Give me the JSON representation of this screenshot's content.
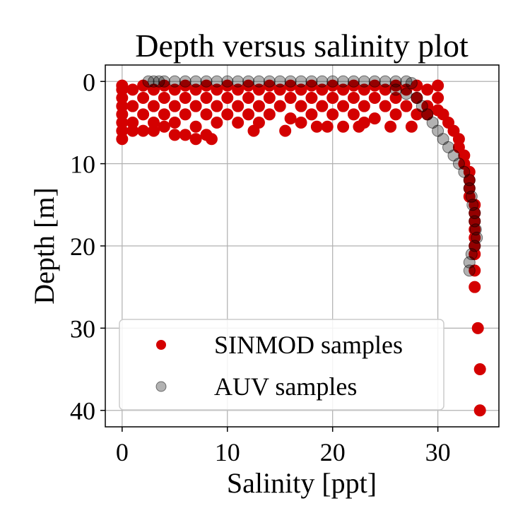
{
  "chart_data": {
    "type": "scatter",
    "title": "Depth versus salinity plot",
    "xlabel": "Salinity [ppt]",
    "ylabel": "Depth [m]",
    "xlim": [
      -1.6,
      35.8
    ],
    "ylim": [
      42,
      -2
    ],
    "y_inverted": true,
    "grid": true,
    "legend_position": "lower-left",
    "x_ticks": [
      0,
      10,
      20,
      30
    ],
    "y_ticks": [
      0,
      10,
      20,
      30,
      40
    ],
    "x_tick_labels": [
      "0",
      "10",
      "20",
      "30"
    ],
    "y_tick_labels": [
      "0",
      "10",
      "20",
      "30",
      "40"
    ],
    "series": [
      {
        "name": "SINMOD samples",
        "color": "#d40000",
        "alpha": 1.0,
        "points": [
          [
            0,
            0.5
          ],
          [
            0,
            1
          ],
          [
            0,
            2
          ],
          [
            0,
            3
          ],
          [
            0,
            4
          ],
          [
            0,
            5
          ],
          [
            0,
            6
          ],
          [
            0,
            7
          ],
          [
            1,
            1
          ],
          [
            1,
            3
          ],
          [
            1,
            5
          ],
          [
            1,
            6
          ],
          [
            2,
            0.5
          ],
          [
            2,
            2
          ],
          [
            2,
            4
          ],
          [
            2,
            6
          ],
          [
            3,
            1
          ],
          [
            3,
            3
          ],
          [
            3,
            5
          ],
          [
            3,
            6
          ],
          [
            4,
            0.5
          ],
          [
            4,
            2
          ],
          [
            4,
            4
          ],
          [
            4,
            5.5
          ],
          [
            5,
            1
          ],
          [
            5,
            3
          ],
          [
            5,
            5
          ],
          [
            5,
            6.5
          ],
          [
            6,
            0.5
          ],
          [
            6,
            2
          ],
          [
            6,
            4
          ],
          [
            6,
            6.5
          ],
          [
            7,
            1
          ],
          [
            7,
            3
          ],
          [
            7,
            5.5
          ],
          [
            7,
            7
          ],
          [
            8,
            0.5
          ],
          [
            8,
            2
          ],
          [
            8,
            4
          ],
          [
            8,
            6.5
          ],
          [
            8.5,
            7
          ],
          [
            9,
            1
          ],
          [
            9,
            3
          ],
          [
            9,
            5
          ],
          [
            10,
            0.5
          ],
          [
            10,
            2
          ],
          [
            10,
            4
          ],
          [
            11,
            1
          ],
          [
            11,
            3
          ],
          [
            11,
            5
          ],
          [
            12,
            0.5
          ],
          [
            12,
            2
          ],
          [
            12,
            4
          ],
          [
            12.5,
            6
          ],
          [
            13,
            1
          ],
          [
            13,
            3
          ],
          [
            13,
            5
          ],
          [
            14,
            0.5
          ],
          [
            14,
            2
          ],
          [
            14,
            4
          ],
          [
            15,
            1
          ],
          [
            15,
            3
          ],
          [
            15.5,
            6
          ],
          [
            16,
            0.5
          ],
          [
            16,
            2
          ],
          [
            16,
            4.5
          ],
          [
            17,
            1
          ],
          [
            17,
            3
          ],
          [
            17,
            5
          ],
          [
            18,
            0.5
          ],
          [
            18,
            2
          ],
          [
            18,
            4
          ],
          [
            18.5,
            5.5
          ],
          [
            19,
            1
          ],
          [
            19,
            3
          ],
          [
            19.5,
            5.5
          ],
          [
            20,
            0.5
          ],
          [
            20,
            2
          ],
          [
            20,
            4
          ],
          [
            21,
            1
          ],
          [
            21,
            3
          ],
          [
            21,
            5.5
          ],
          [
            22,
            0.5
          ],
          [
            22,
            2
          ],
          [
            22,
            4
          ],
          [
            22.5,
            5.5
          ],
          [
            23,
            1
          ],
          [
            23,
            3
          ],
          [
            23,
            5
          ],
          [
            24,
            0.5
          ],
          [
            24,
            2
          ],
          [
            24,
            4.5
          ],
          [
            25,
            1
          ],
          [
            25,
            3
          ],
          [
            25.5,
            5.5
          ],
          [
            26,
            0.5
          ],
          [
            26,
            2
          ],
          [
            26,
            4
          ],
          [
            27,
            1
          ],
          [
            27,
            3
          ],
          [
            27.5,
            5.5
          ],
          [
            28,
            0.5
          ],
          [
            28,
            2
          ],
          [
            28,
            4
          ],
          [
            29,
            1
          ],
          [
            29,
            3
          ],
          [
            29,
            4
          ],
          [
            30,
            0.5
          ],
          [
            30,
            2
          ],
          [
            30,
            3.5
          ],
          [
            30.5,
            4
          ],
          [
            31,
            5
          ],
          [
            31.5,
            6
          ],
          [
            32,
            7
          ],
          [
            32,
            8
          ],
          [
            32.5,
            9
          ],
          [
            32.5,
            10
          ],
          [
            33,
            11
          ],
          [
            33,
            12
          ],
          [
            33,
            13
          ],
          [
            33,
            14
          ],
          [
            33.5,
            15
          ],
          [
            33.5,
            16
          ],
          [
            33.5,
            17
          ],
          [
            33.5,
            18
          ],
          [
            33.5,
            19
          ],
          [
            33.5,
            20
          ],
          [
            33.5,
            21
          ],
          [
            33.5,
            23
          ],
          [
            33.5,
            25
          ],
          [
            33.8,
            30
          ],
          [
            34,
            35
          ],
          [
            34,
            40
          ]
        ]
      },
      {
        "name": "AUV samples",
        "color": "#000000",
        "alpha": 0.3,
        "points": [
          [
            2.5,
            0
          ],
          [
            3,
            0
          ],
          [
            3.5,
            0
          ],
          [
            4,
            0
          ],
          [
            5,
            0
          ],
          [
            6,
            0
          ],
          [
            7,
            0
          ],
          [
            8,
            0
          ],
          [
            9,
            0
          ],
          [
            10,
            0
          ],
          [
            11,
            0
          ],
          [
            12,
            0
          ],
          [
            13,
            0
          ],
          [
            14,
            0
          ],
          [
            15,
            0
          ],
          [
            16,
            0
          ],
          [
            17,
            0
          ],
          [
            18,
            0
          ],
          [
            19,
            0
          ],
          [
            20,
            0
          ],
          [
            21,
            0
          ],
          [
            22,
            0
          ],
          [
            23,
            0
          ],
          [
            24,
            0
          ],
          [
            25,
            0
          ],
          [
            26,
            0
          ],
          [
            27,
            0
          ],
          [
            27.5,
            0.2
          ],
          [
            26,
            1
          ],
          [
            27,
            1.5
          ],
          [
            28,
            2
          ],
          [
            28.5,
            3
          ],
          [
            29,
            4
          ],
          [
            29.5,
            5
          ],
          [
            30,
            6
          ],
          [
            30.5,
            7
          ],
          [
            31,
            8
          ],
          [
            31.5,
            9
          ],
          [
            32,
            10
          ],
          [
            32.5,
            11
          ],
          [
            33,
            12
          ],
          [
            33,
            13
          ],
          [
            33.2,
            14
          ],
          [
            33.3,
            15
          ],
          [
            33.5,
            16
          ],
          [
            33.5,
            17
          ],
          [
            33.6,
            18
          ],
          [
            33.7,
            19
          ],
          [
            33.5,
            20
          ],
          [
            33.2,
            21
          ],
          [
            33,
            22
          ],
          [
            33,
            23
          ]
        ]
      }
    ]
  }
}
